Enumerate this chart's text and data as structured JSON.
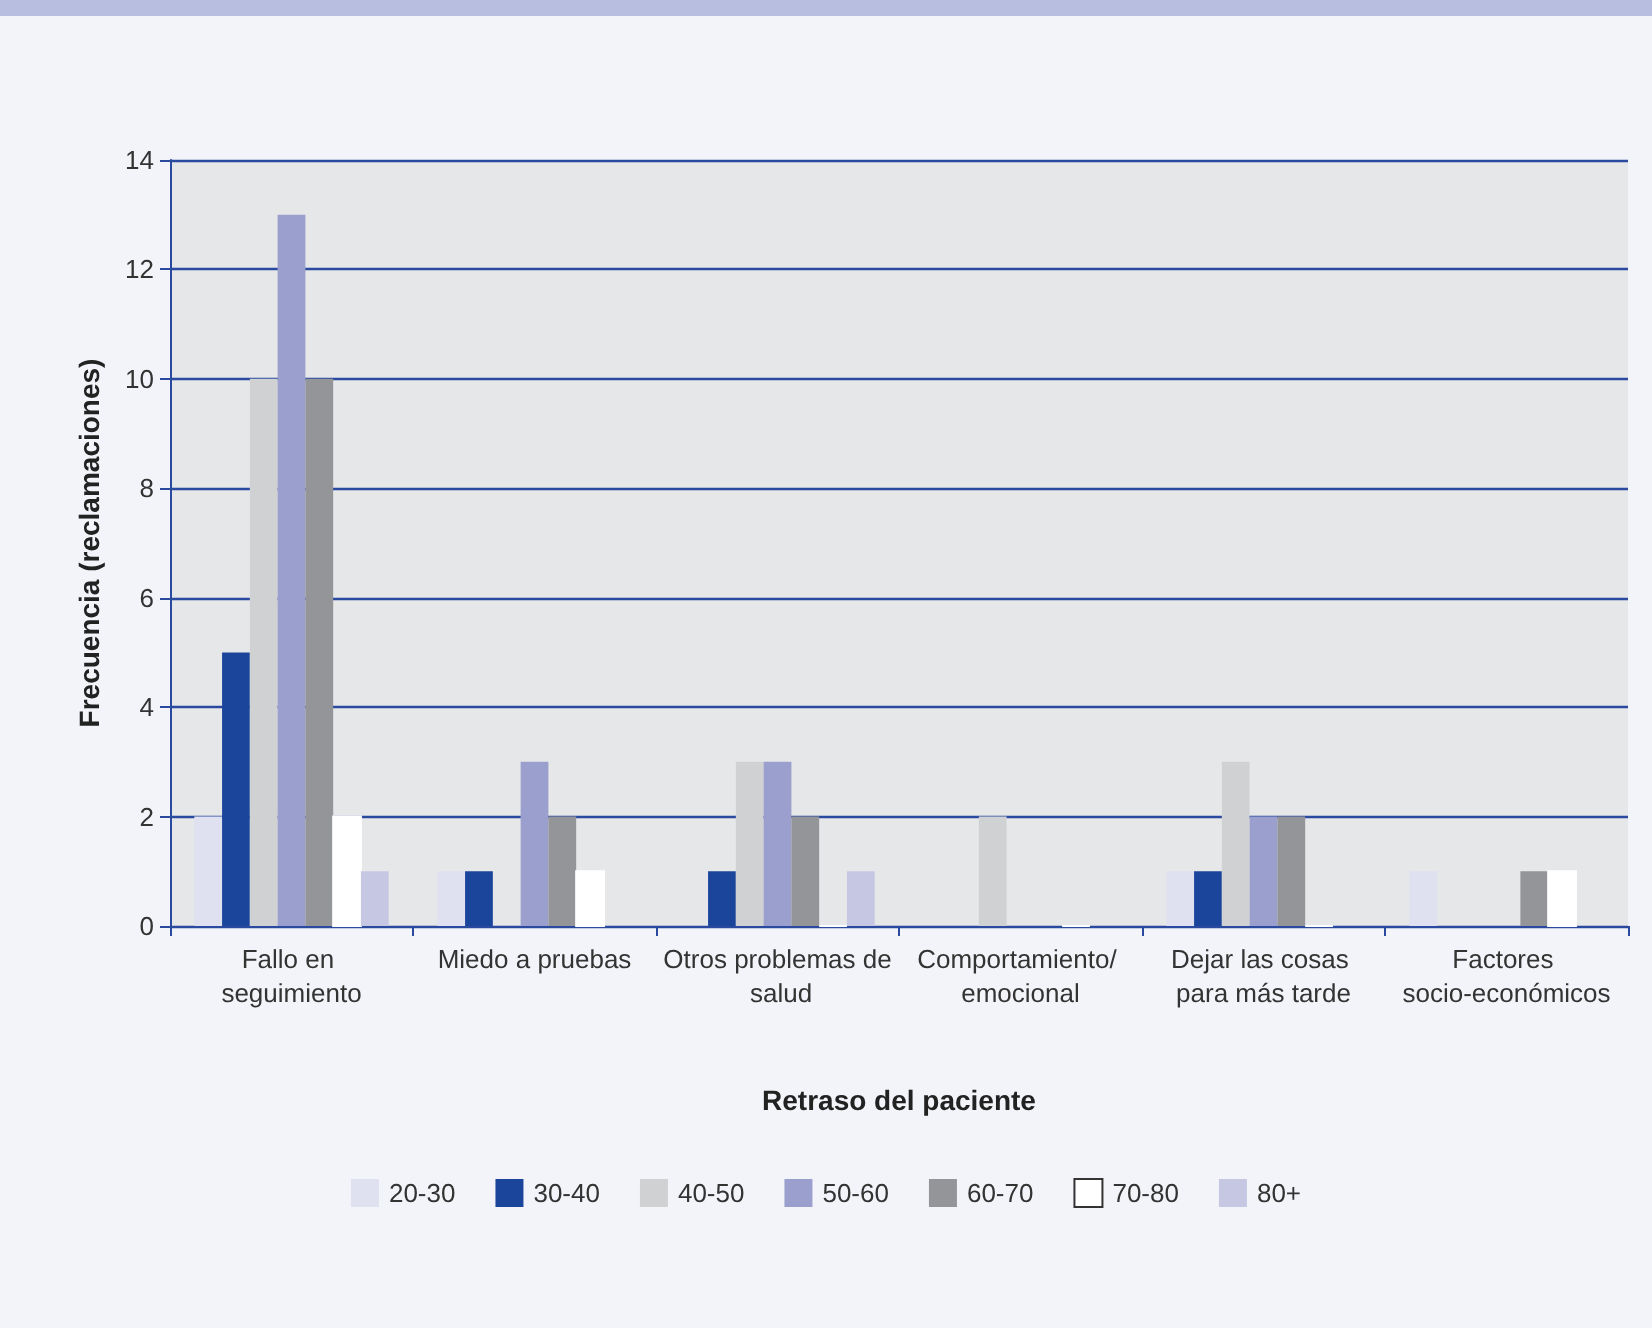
{
  "chart_data": {
    "type": "bar",
    "xlabel": "Retraso del paciente",
    "ylabel": "Frecuencia (reclamaciones)",
    "categories": [
      "Fallo en seguimiento",
      "Miedo a pruebas",
      "Otros problemas de salud",
      "Comportamiento/ emocional",
      "Dejar las cosas para más tarde",
      "Factores socio-económicos"
    ],
    "series": [
      {
        "name": "20-30",
        "color": "#dfe0f0",
        "values": [
          2,
          1,
          0,
          0,
          1,
          1
        ]
      },
      {
        "name": "30-40",
        "color": "#1b449b",
        "values": [
          5,
          1,
          1,
          0,
          1,
          0
        ]
      },
      {
        "name": "40-50",
        "color": "#d0d1d3",
        "values": [
          10,
          0,
          3,
          2,
          3,
          0
        ]
      },
      {
        "name": "50-60",
        "color": "#9a9fcd",
        "values": [
          13,
          3,
          3,
          0,
          2,
          0
        ]
      },
      {
        "name": "60-70",
        "color": "#949598",
        "values": [
          10,
          2,
          2,
          0,
          2,
          1
        ]
      },
      {
        "name": "70-80",
        "color": "#ffffff",
        "values": [
          2,
          1,
          0,
          0,
          0,
          1
        ]
      },
      {
        "name": "80+",
        "color": "#c6c8e3",
        "values": [
          1,
          0,
          1,
          0,
          0,
          0
        ]
      }
    ],
    "ylim": [
      0,
      14
    ],
    "yticks": [
      0,
      2,
      4,
      6,
      8,
      10,
      12,
      14
    ],
    "grid": "y",
    "legend": "bottom"
  }
}
